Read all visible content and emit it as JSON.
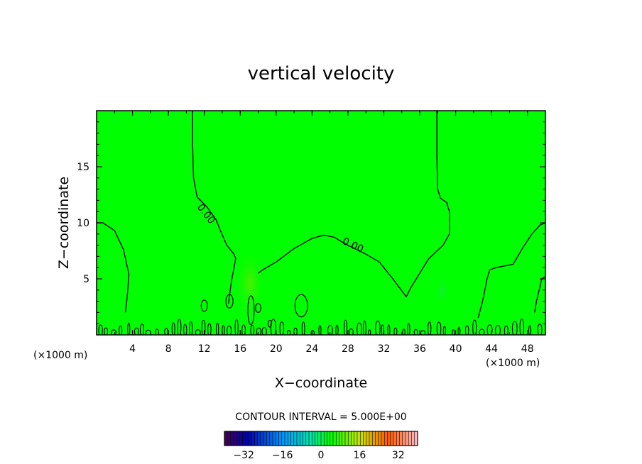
{
  "chart_data": {
    "type": "contour",
    "title": "vertical velocity",
    "xlabel": "X−coordinate",
    "ylabel": "Z−coordinate",
    "x_unit_left": "(×1000 m)",
    "x_unit_right": "(×1000 m)",
    "xlim": [
      0,
      50
    ],
    "ylim": [
      0,
      20
    ],
    "x_ticks": [
      4,
      8,
      12,
      16,
      20,
      24,
      28,
      32,
      36,
      40,
      44,
      48
    ],
    "x_tick_labels": [
      "4",
      "8",
      "12",
      "16",
      "20",
      "24",
      "28",
      "32",
      "36",
      "40",
      "44",
      "48"
    ],
    "y_ticks": [
      5,
      10,
      15
    ],
    "y_tick_labels": [
      "5",
      "10",
      "15"
    ],
    "contour_labels": [
      "0.00",
      "0.00"
    ],
    "contour_level": 0.0,
    "contour_interval_text": "CONTOUR INTERVAL = 5.000E+00",
    "colorbar": {
      "min": -40,
      "max": 40,
      "step": 5,
      "tick_values": [
        -32,
        -16,
        0,
        16,
        32
      ],
      "tick_labels": [
        "−32",
        "−16",
        "0",
        "16",
        "32"
      ]
    },
    "background_color": "#00ff00",
    "contour_color": "#000000",
    "zero_contour_paths": [
      [
        [
          10.7,
          20
        ],
        [
          10.7,
          17
        ],
        [
          10.8,
          14
        ],
        [
          11.2,
          12.3
        ],
        [
          12.3,
          11.4
        ],
        [
          13.3,
          10.3
        ],
        [
          13.8,
          9.3
        ],
        [
          14.5,
          8.0
        ],
        [
          15.3,
          7.2
        ],
        [
          15.5,
          6.8
        ],
        [
          15.0,
          4.7
        ],
        [
          14.7,
          2.8
        ]
      ],
      [
        [
          0,
          10.0
        ],
        [
          0.7,
          10.0
        ],
        [
          2.0,
          9.3
        ],
        [
          3.0,
          7.6
        ],
        [
          3.6,
          5.4
        ],
        [
          3.4,
          3.3
        ],
        [
          3.2,
          2.0
        ]
      ],
      [
        [
          50,
          10.0
        ],
        [
          49.4,
          9.8
        ],
        [
          48.5,
          9.0
        ],
        [
          47.5,
          7.8
        ],
        [
          46.4,
          6.3
        ],
        [
          44.5,
          6.0
        ],
        [
          43.8,
          5.8
        ],
        [
          43.5,
          5.0
        ],
        [
          43.0,
          3.0
        ],
        [
          42.5,
          1.5
        ]
      ],
      [
        [
          37.9,
          20
        ],
        [
          37.9,
          16
        ],
        [
          38.0,
          13.0
        ],
        [
          38.3,
          12.2
        ],
        [
          39.0,
          11.8
        ],
        [
          39.3,
          11.0
        ],
        [
          39.3,
          9.0
        ],
        [
          38.6,
          8.0
        ],
        [
          37.0,
          6.8
        ],
        [
          35.0,
          4.2
        ],
        [
          34.5,
          3.4
        ],
        [
          33.0,
          5.0
        ],
        [
          31.5,
          6.5
        ],
        [
          30.0,
          7.2
        ],
        [
          28.5,
          7.8
        ],
        [
          27.5,
          8.2
        ],
        [
          26.5,
          8.7
        ],
        [
          25.3,
          8.9
        ],
        [
          24.0,
          8.6
        ],
        [
          22.0,
          7.7
        ],
        [
          20.0,
          6.5
        ],
        [
          18.5,
          5.8
        ],
        [
          18.0,
          5.5
        ]
      ],
      [
        [
          50,
          5.2
        ],
        [
          49.6,
          5.0
        ],
        [
          49.3,
          4.0
        ],
        [
          49.0,
          3.0
        ],
        [
          48.8,
          2.0
        ]
      ]
    ],
    "small_features": [
      {
        "cx": 17.2,
        "cy": 2.2,
        "rx": 0.35,
        "ry": 1.3
      },
      {
        "cx": 22.8,
        "cy": 2.6,
        "rx": 0.7,
        "ry": 1.0
      },
      {
        "cx": 12.0,
        "cy": 2.6,
        "rx": 0.35,
        "ry": 0.5
      },
      {
        "cx": 14.8,
        "cy": 3.0,
        "rx": 0.4,
        "ry": 0.6
      },
      {
        "cx": 19.3,
        "cy": 1.0,
        "rx": 0.2,
        "ry": 0.3
      },
      {
        "cx": 18.0,
        "cy": 2.4,
        "rx": 0.3,
        "ry": 0.4
      }
    ]
  }
}
